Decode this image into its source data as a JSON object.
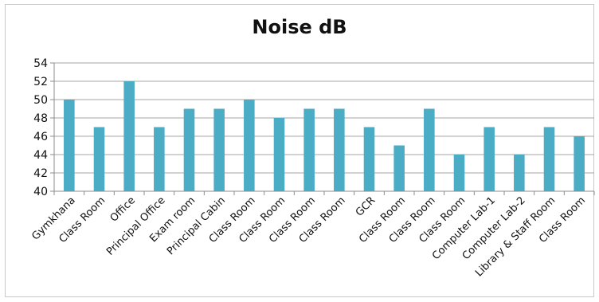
{
  "chart_data": {
    "type": "bar",
    "title": "Noise dB",
    "xlabel": "",
    "ylabel": "",
    "categories": [
      "Gymkhana",
      "Class Room",
      "Office",
      "Principal Office",
      "Exam room",
      "Principal Cabin",
      "Class Room",
      "Class Room",
      "Class Room",
      "Class Room",
      "GCR",
      "Class Room",
      "Class Room",
      "Class Room",
      "Computer Lab-1",
      "Computer Lab-2",
      "Library & Staff Room",
      "Class Room"
    ],
    "values": [
      50,
      47,
      52,
      47,
      49,
      49,
      50,
      48,
      49,
      49,
      47,
      45,
      49,
      44,
      47,
      44,
      47,
      46
    ],
    "ylim": [
      40,
      54
    ],
    "yticks": [
      40,
      42,
      44,
      46,
      48,
      50,
      52,
      54
    ],
    "grid": true,
    "legend": "none",
    "bar_color": "#4bacc6"
  }
}
